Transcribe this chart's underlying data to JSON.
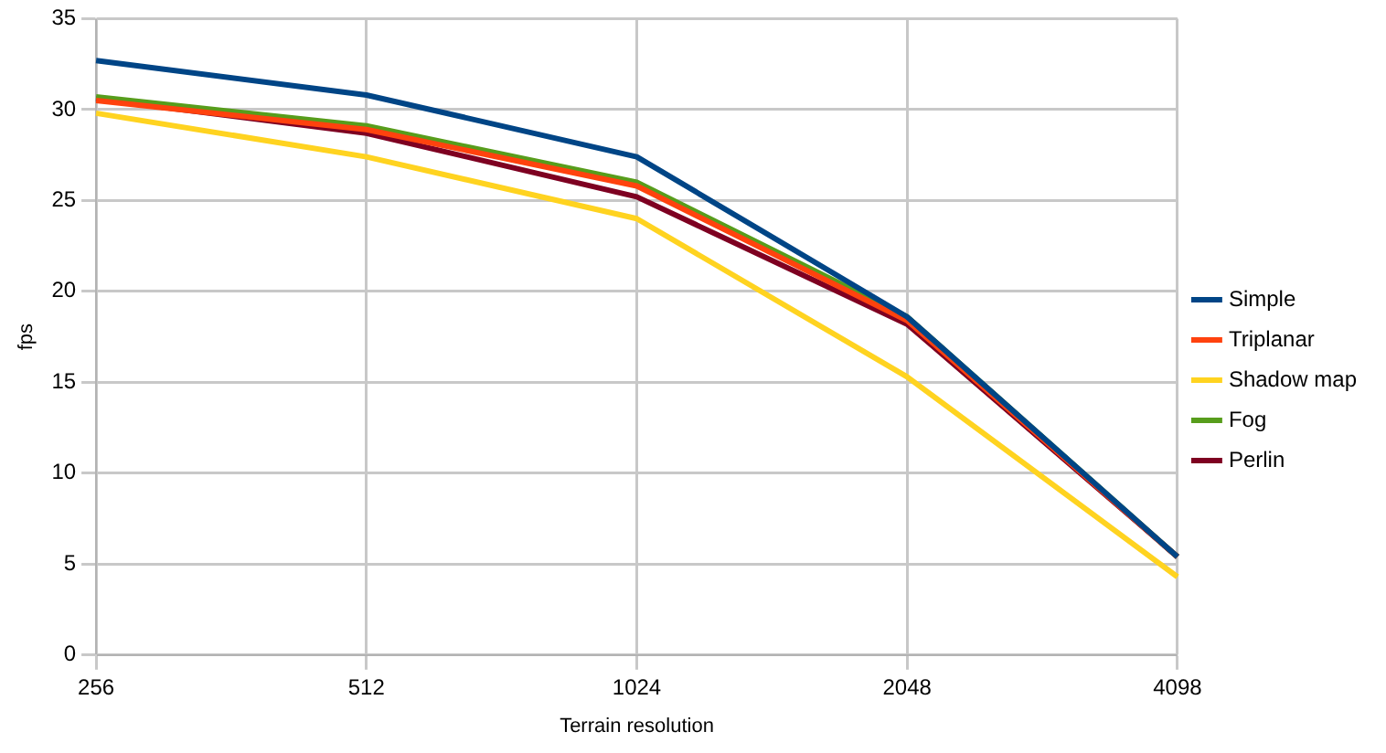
{
  "chart_data": {
    "type": "line",
    "xlabel": "Terrain resolution",
    "ylabel": "fps",
    "categories": [
      "256",
      "512",
      "1024",
      "2048",
      "4098"
    ],
    "series": [
      {
        "name": "Simple",
        "color": "#004586",
        "values": [
          32.7,
          30.8,
          27.4,
          18.6,
          5.4
        ]
      },
      {
        "name": "Triplanar",
        "color": "#ff420e",
        "values": [
          30.5,
          28.9,
          25.8,
          18.4,
          5.4
        ]
      },
      {
        "name": "Shadow map",
        "color": "#ffd320",
        "values": [
          29.8,
          27.4,
          24.0,
          15.3,
          4.3
        ]
      },
      {
        "name": "Fog",
        "color": "#579d1c",
        "values": [
          30.7,
          29.1,
          26.0,
          18.6,
          5.4
        ]
      },
      {
        "name": "Perlin",
        "color": "#7e0021",
        "values": [
          30.6,
          28.7,
          25.2,
          18.2,
          5.4
        ]
      }
    ],
    "ylim": [
      0,
      35
    ],
    "yticks": [
      0,
      5,
      10,
      15,
      20,
      25,
      30,
      35
    ],
    "grid": true,
    "legend": "right",
    "marker": "none",
    "line_style": "solid"
  }
}
